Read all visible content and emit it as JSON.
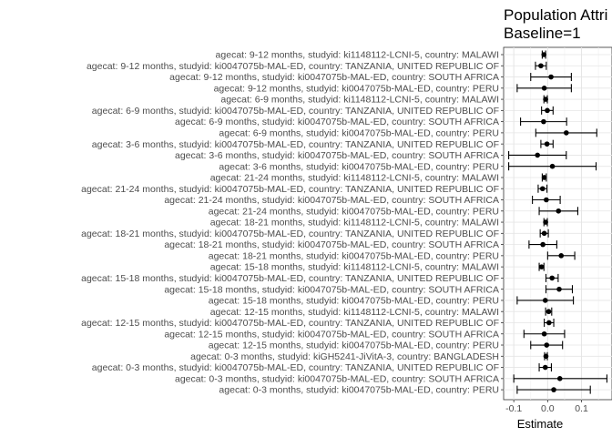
{
  "chart_data": {
    "type": "scatter",
    "title_lines": [
      "Population Attri",
      "Baseline=1"
    ],
    "xlabel": "Estimate",
    "xlim": [
      -0.13,
      0.19
    ],
    "xticks": [
      -0.1,
      0.0,
      0.1
    ],
    "xtick_labels": [
      "-0.1",
      "0.0",
      "0.1"
    ],
    "grid": true,
    "points": [
      {
        "label": "agecat: 9-12 months, studyid: ki1148112-LCNI-5, country: MALAWI",
        "estimate": -0.011,
        "lower": -0.016,
        "upper": -0.006
      },
      {
        "label": "agecat: 9-12 months, studyid: ki0047075b-MAL-ED, country: TANZANIA, UNITED REPUBLIC OF",
        "estimate": -0.02,
        "lower": -0.036,
        "upper": -0.004
      },
      {
        "label": "agecat: 9-12 months, studyid: ki0047075b-MAL-ED, country: SOUTH AFRICA",
        "estimate": 0.01,
        "lower": -0.05,
        "upper": 0.07
      },
      {
        "label": "agecat: 9-12 months, studyid: ki0047075b-MAL-ED, country: PERU",
        "estimate": -0.01,
        "lower": -0.09,
        "upper": 0.07
      },
      {
        "label": "agecat: 6-9 months, studyid: ki1148112-LCNI-5, country: MALAWI",
        "estimate": -0.006,
        "lower": -0.011,
        "upper": -0.001
      },
      {
        "label": "agecat: 6-9 months, studyid: ki0047075b-MAL-ED, country: TANZANIA, UNITED REPUBLIC OF",
        "estimate": -0.001,
        "lower": -0.018,
        "upper": 0.016
      },
      {
        "label": "agecat: 6-9 months, studyid: ki0047075b-MAL-ED, country: SOUTH AFRICA",
        "estimate": -0.012,
        "lower": -0.08,
        "upper": 0.056
      },
      {
        "label": "agecat: 6-9 months, studyid: ki0047075b-MAL-ED, country: PERU",
        "estimate": 0.055,
        "lower": -0.035,
        "upper": 0.145
      },
      {
        "label": "agecat: 3-6 months, studyid: ki0047075b-MAL-ED, country: TANZANIA, UNITED REPUBLIC OF",
        "estimate": -0.002,
        "lower": -0.02,
        "upper": 0.016
      },
      {
        "label": "agecat: 3-6 months, studyid: ki0047075b-MAL-ED, country: SOUTH AFRICA",
        "estimate": -0.03,
        "lower": -0.115,
        "upper": 0.055
      },
      {
        "label": "agecat: 3-6 months, studyid: ki0047075b-MAL-ED, country: PERU",
        "estimate": 0.014,
        "lower": -0.115,
        "upper": 0.143
      },
      {
        "label": "agecat: 21-24 months, studyid: ki1148112-LCNI-5, country: MALAWI",
        "estimate": -0.01,
        "lower": -0.016,
        "upper": -0.004
      },
      {
        "label": "agecat: 21-24 months, studyid: ki0047075b-MAL-ED, country: TANZANIA, UNITED REPUBLIC OF",
        "estimate": -0.015,
        "lower": -0.028,
        "upper": -0.002
      },
      {
        "label": "agecat: 21-24 months, studyid: ki0047075b-MAL-ED, country: SOUTH AFRICA",
        "estimate": -0.004,
        "lower": -0.045,
        "upper": 0.037
      },
      {
        "label": "agecat: 21-24 months, studyid: ki0047075b-MAL-ED, country: PERU",
        "estimate": 0.032,
        "lower": -0.025,
        "upper": 0.089
      },
      {
        "label": "agecat: 18-21 months, studyid: ki1148112-LCNI-5, country: MALAWI",
        "estimate": -0.006,
        "lower": -0.011,
        "upper": -0.001
      },
      {
        "label": "agecat: 18-21 months, studyid: ki0047075b-MAL-ED, country: TANZANIA, UNITED REPUBLIC OF",
        "estimate": -0.01,
        "lower": -0.022,
        "upper": 0.002
      },
      {
        "label": "agecat: 18-21 months, studyid: ki0047075b-MAL-ED, country: SOUTH AFRICA",
        "estimate": -0.014,
        "lower": -0.055,
        "upper": 0.027
      },
      {
        "label": "agecat: 18-21 months, studyid: ki0047075b-MAL-ED, country: PERU",
        "estimate": 0.04,
        "lower": 0.0,
        "upper": 0.08
      },
      {
        "label": "agecat: 15-18 months, studyid: ki1148112-LCNI-5, country: MALAWI",
        "estimate": -0.018,
        "lower": -0.025,
        "upper": -0.011
      },
      {
        "label": "agecat: 15-18 months, studyid: ki0047075b-MAL-ED, country: TANZANIA, UNITED REPUBLIC OF",
        "estimate": 0.013,
        "lower": -0.005,
        "upper": 0.031
      },
      {
        "label": "agecat: 15-18 months, studyid: ki0047075b-MAL-ED, country: SOUTH AFRICA",
        "estimate": 0.034,
        "lower": -0.005,
        "upper": 0.073
      },
      {
        "label": "agecat: 15-18 months, studyid: ki0047075b-MAL-ED, country: PERU",
        "estimate": -0.007,
        "lower": -0.09,
        "upper": 0.076
      },
      {
        "label": "agecat: 12-15 months, studyid: ki1148112-LCNI-5, country: MALAWI",
        "estimate": 0.003,
        "lower": -0.006,
        "upper": 0.012
      },
      {
        "label": "agecat: 12-15 months, studyid: ki0047075b-MAL-ED, country: TANZANIA, UNITED REPUBLIC OF",
        "estimate": 0.004,
        "lower": -0.01,
        "upper": 0.018
      },
      {
        "label": "agecat: 12-15 months, studyid: ki0047075b-MAL-ED, country: SOUTH AFRICA",
        "estimate": -0.01,
        "lower": -0.07,
        "upper": 0.05
      },
      {
        "label": "agecat: 12-15 months, studyid: ki0047075b-MAL-ED, country: PERU",
        "estimate": -0.003,
        "lower": -0.05,
        "upper": 0.044
      },
      {
        "label": "agecat: 0-3 months, studyid: kiGH5241-JiVitA-3, country: BANGLADESH",
        "estimate": -0.005,
        "lower": -0.009,
        "upper": -0.001
      },
      {
        "label": "agecat: 0-3 months, studyid: ki0047075b-MAL-ED, country: TANZANIA, UNITED REPUBLIC OF",
        "estimate": -0.007,
        "lower": -0.025,
        "upper": 0.011
      },
      {
        "label": "agecat: 0-3 months, studyid: ki0047075b-MAL-ED, country: SOUTH AFRICA",
        "estimate": 0.036,
        "lower": -0.1,
        "upper": 0.175
      },
      {
        "label": "agecat: 0-3 months, studyid: ki0047075b-MAL-ED, country: PERU",
        "estimate": 0.018,
        "lower": -0.09,
        "upper": 0.126
      }
    ]
  }
}
